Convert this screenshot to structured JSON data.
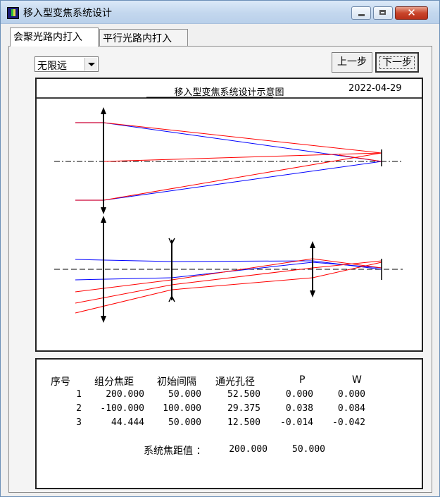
{
  "window": {
    "title": "移入型变焦系统设计",
    "controls": {
      "minimize_icon": "minimize-icon",
      "maximize_icon": "maximize-icon",
      "close_icon": "close-icon",
      "close_glyph": "✕"
    }
  },
  "tabs": [
    {
      "label": "会聚光路内打入",
      "active": true
    },
    {
      "label": "平行光路内打入",
      "active": false
    }
  ],
  "toolbar": {
    "object_distance": {
      "selected": "无限远"
    },
    "prev_label": "上一步",
    "next_label": "下一步"
  },
  "diagram": {
    "title": "移入型变焦系统设计示意图",
    "date": "2022-04-29",
    "colors": {
      "ray_red": "#ff0000",
      "ray_blue": "#0000ff",
      "lens": "#000000",
      "axis": "#000000"
    }
  },
  "table": {
    "headers": [
      "序号",
      "组分焦距",
      "初始间隔",
      "通光孔径",
      "P",
      "W"
    ],
    "rows": [
      [
        "1",
        "200.000",
        "50.000",
        "52.500",
        "0.000",
        "0.000"
      ],
      [
        "2",
        "-100.000",
        "100.000",
        "29.375",
        "0.038",
        "0.084"
      ],
      [
        "3",
        "44.444",
        "50.000",
        "12.500",
        "-0.014",
        "-0.042"
      ]
    ],
    "system_label": "系统焦距值 ：",
    "system_values": [
      "200.000",
      "50.000"
    ]
  }
}
